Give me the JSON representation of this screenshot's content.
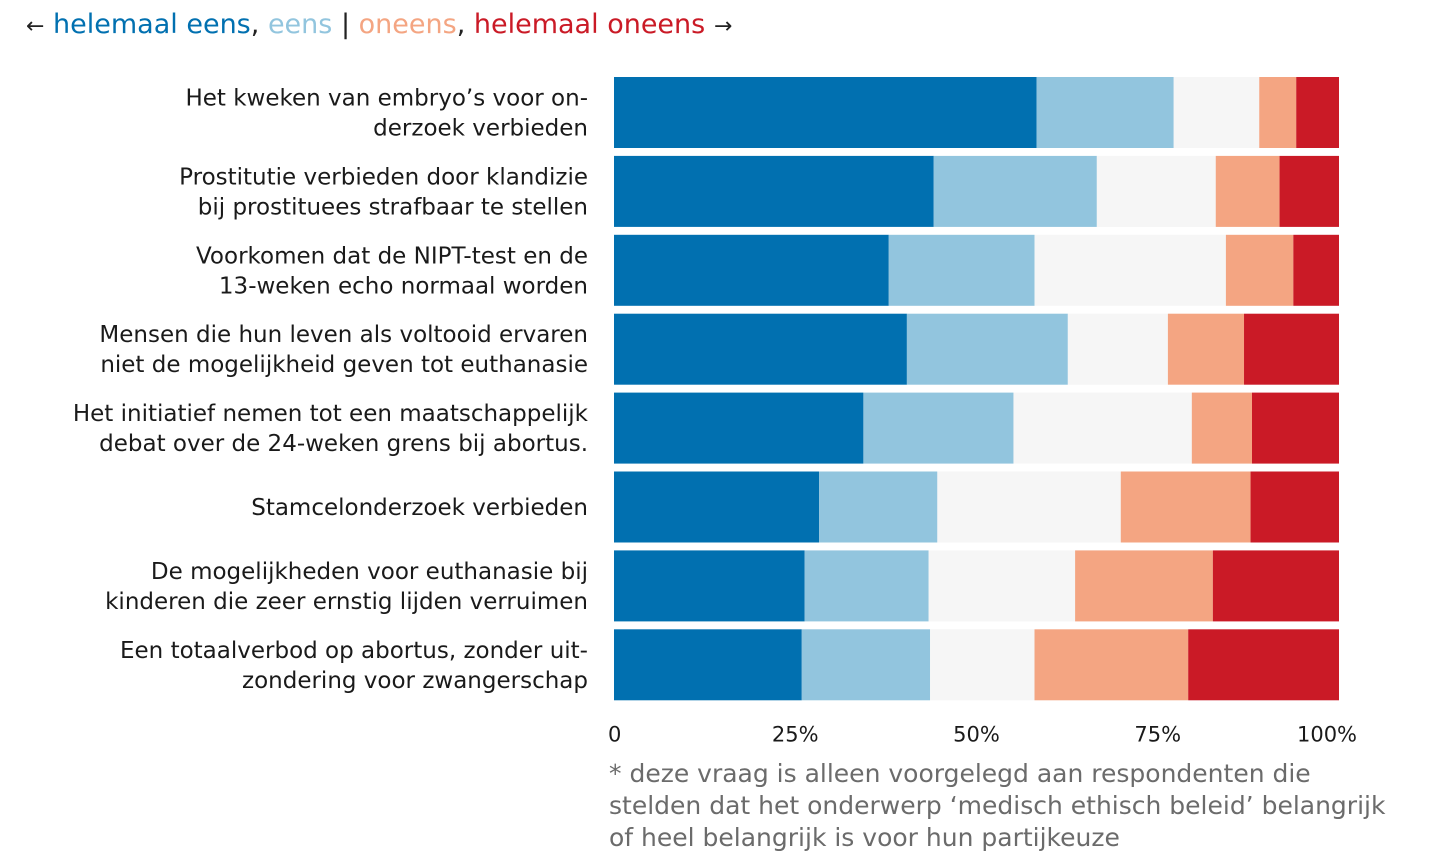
{
  "legend": {
    "left_arrow": "←",
    "right_arrow": "→",
    "items": [
      {
        "label": "helemaal eens",
        "color": "#0170b0"
      },
      {
        "label": "eens",
        "color": "#92c5de"
      },
      {
        "label": "oneens",
        "color": "#f4a582"
      },
      {
        "label": "helemaal oneens",
        "color": "#ca1a26"
      }
    ],
    "comma": ",",
    "divider": "|"
  },
  "chart_data": {
    "type": "bar",
    "orientation": "horizontal",
    "stacked": true,
    "normalized": true,
    "categories": [
      [
        "Het kweken van embryo’s voor on-",
        "derzoek verbieden"
      ],
      [
        "Prostitutie verbieden door klandizie",
        "bij prostituees strafbaar te stellen"
      ],
      [
        "Voorkomen dat de NIPT-test en de",
        "13-weken echo normaal worden"
      ],
      [
        "Mensen die hun leven als voltooid ervaren",
        "niet de mogelijkheid geven tot euthanasie"
      ],
      [
        "Het initiatief nemen tot een maatschappelijk",
        "debat over de 24-weken grens bij abortus."
      ],
      [
        "Stamcelonderzoek verbieden"
      ],
      [
        "De mogelijkheden voor euthanasie bij",
        "kinderen die zeer ernstig lijden verruimen"
      ],
      [
        "Een totaalverbod op abortus, zonder uit-",
        "zondering voor zwangerschap"
      ]
    ],
    "series": [
      {
        "name": "helemaal eens",
        "color": "#0170b0",
        "values": [
          58.3,
          44.1,
          37.9,
          40.4,
          34.4,
          28.3,
          26.3,
          25.9
        ]
      },
      {
        "name": "eens",
        "color": "#92c5de",
        "values": [
          18.9,
          22.5,
          20.1,
          22.2,
          20.7,
          16.3,
          17.1,
          17.7
        ]
      },
      {
        "name": "",
        "color": "#f6f6f6",
        "values": [
          11.8,
          16.4,
          26.4,
          13.8,
          24.6,
          25.3,
          20.2,
          14.4
        ]
      },
      {
        "name": "oneens",
        "color": "#f4a582",
        "values": [
          5.1,
          8.8,
          9.3,
          10.5,
          8.3,
          17.9,
          19.0,
          21.2
        ]
      },
      {
        "name": "helemaal oneens",
        "color": "#ca1a26",
        "values": [
          5.9,
          8.2,
          6.3,
          13.1,
          12.0,
          12.2,
          17.4,
          20.8
        ]
      }
    ],
    "xticks": [
      "0",
      "25%",
      "50%",
      "75%",
      "100%"
    ],
    "xlim": [
      0,
      100
    ],
    "grid": false,
    "legend_position": "top"
  },
  "footnote": "* deze vraag is alleen voorgelegd aan respondenten die stelden dat het onderwerp ‘medisch ethisch beleid’ belangrijk of heel belangrijk is voor hun partijkeuze"
}
